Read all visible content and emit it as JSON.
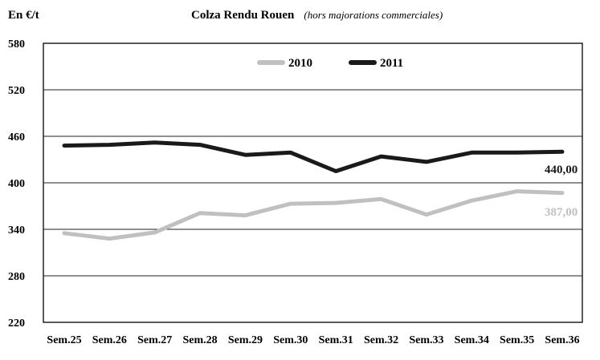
{
  "chart_data": {
    "type": "line",
    "unit_label": "En €/t",
    "title": "Colza Rendu Rouen",
    "subtitle": "(hors majorations commerciales)",
    "categories": [
      "Sem.25",
      "Sem.26",
      "Sem.27",
      "Sem.28",
      "Sem.29",
      "Sem.30",
      "Sem.31",
      "Sem.32",
      "Sem.33",
      "Sem.34",
      "Sem.35",
      "Sem.36"
    ],
    "ylim": [
      220,
      580
    ],
    "yticks": [
      "580",
      "520",
      "460",
      "400",
      "340",
      "280",
      "220"
    ],
    "grid": true,
    "legend_position": "top-center",
    "series": [
      {
        "name": "2010",
        "color": "#c0c0c0",
        "values": [
          335,
          328,
          336,
          361,
          358,
          373,
          374,
          379,
          359,
          377,
          389,
          387
        ],
        "end_label": "387,00"
      },
      {
        "name": "2011",
        "color": "#1a1a1a",
        "values": [
          448,
          449,
          452,
          449,
          436,
          439,
          415,
          434,
          427,
          439,
          439,
          440
        ],
        "end_label": "440,00"
      }
    ]
  }
}
